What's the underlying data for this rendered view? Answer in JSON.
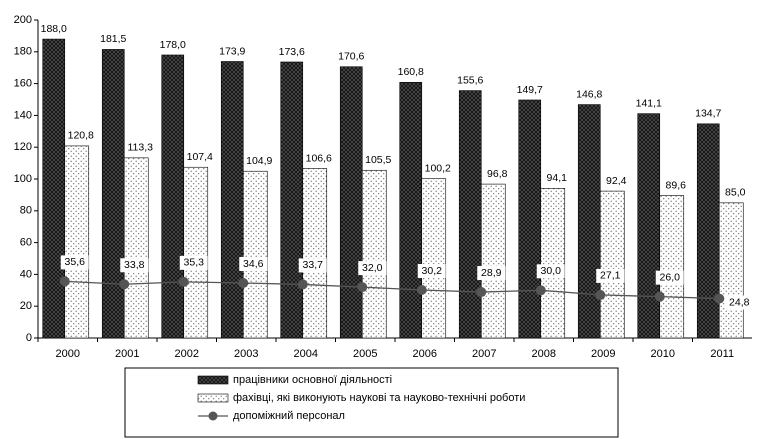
{
  "chart_data": {
    "type": "bar",
    "categories": [
      "2000",
      "2001",
      "2002",
      "2003",
      "2004",
      "2005",
      "2006",
      "2007",
      "2008",
      "2009",
      "2010",
      "2011"
    ],
    "series": [
      {
        "name": "працівники основної діяльності",
        "color": "#4a4a4a",
        "kind": "bar",
        "values": [
          188.0,
          181.5,
          178.0,
          173.9,
          173.6,
          170.6,
          160.8,
          155.6,
          149.7,
          146.8,
          141.1,
          134.7
        ],
        "value_labels": [
          "188,0",
          "181,5",
          "178,0",
          "173,9",
          "173,6",
          "170,6",
          "160,8",
          "155,6",
          "149,7",
          "146,8",
          "141,1",
          "134,7"
        ]
      },
      {
        "name": "фахівці, які виконують наукові та науково-технічні роботи",
        "color": "#ffffff",
        "kind": "bar",
        "values": [
          120.8,
          113.3,
          107.4,
          104.9,
          106.6,
          105.5,
          100.2,
          96.8,
          94.1,
          92.4,
          89.6,
          85.0
        ],
        "value_labels": [
          "120,8",
          "113,3",
          "107,4",
          "104,9",
          "106,6",
          "105,5",
          "100,2",
          "96,8",
          "94,1",
          "92,4",
          "89,6",
          "85,0"
        ]
      },
      {
        "name": "допоміжний персонал",
        "color": "#555555",
        "kind": "line",
        "values": [
          35.6,
          33.8,
          35.3,
          34.6,
          33.7,
          32.0,
          30.2,
          28.9,
          30.0,
          27.1,
          26.0,
          24.8
        ],
        "value_labels": [
          "35,6",
          "33,8",
          "35,3",
          "34,6",
          "33,7",
          "32,0",
          "30,2",
          "28,9",
          "30,0",
          "27,1",
          "26,0",
          "24,8"
        ]
      }
    ],
    "ylim": [
      0,
      200
    ],
    "yticks": [
      0,
      20,
      40,
      60,
      80,
      100,
      120,
      140,
      160,
      180,
      200
    ],
    "legend": "bottom"
  }
}
